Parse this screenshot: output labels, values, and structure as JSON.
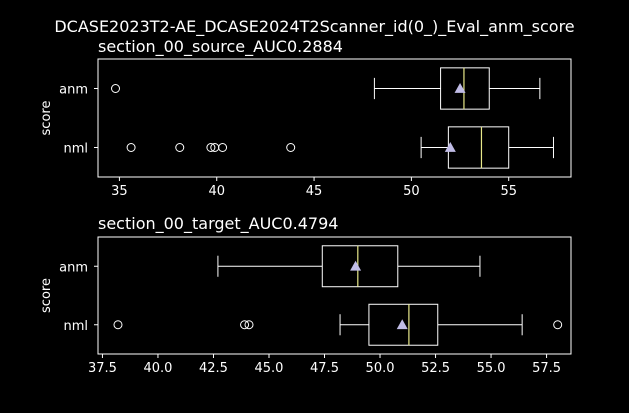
{
  "chart_data": [
    {
      "type": "box",
      "suptitle": "DCASE2023T2-AE_DCASE2024T2Scanner_id(0_)_Eval_anm_score",
      "title": "section_00_source_AUC0.2884",
      "ylabel": "score",
      "xlim": [
        33.9,
        58.2
      ],
      "xticks": [
        35,
        40,
        45,
        50,
        55
      ],
      "xtick_labels": [
        "35",
        "40",
        "45",
        "50",
        "55"
      ],
      "categories": [
        "anm",
        "nml"
      ],
      "boxes": [
        {
          "label": "anm",
          "whisker_low": 48.1,
          "q1": 51.5,
          "median": 52.7,
          "q3": 54.0,
          "whisker_high": 56.6,
          "mean": 52.5,
          "outliers": [
            34.8
          ]
        },
        {
          "label": "nml",
          "whisker_low": 50.5,
          "q1": 51.9,
          "median": 53.6,
          "q3": 55.0,
          "whisker_high": 57.3,
          "mean": 52.0,
          "outliers": [
            35.6,
            38.1,
            39.7,
            39.9,
            40.3,
            43.8
          ]
        }
      ],
      "grid": false
    },
    {
      "type": "box",
      "title": "section_00_target_AUC0.4794",
      "ylabel": "score",
      "xlim": [
        37.3,
        58.6
      ],
      "xticks": [
        37.5,
        40.0,
        42.5,
        45.0,
        47.5,
        50.0,
        52.5,
        55.0,
        57.5
      ],
      "xtick_labels": [
        "37.5",
        "40.0",
        "42.5",
        "45.0",
        "47.5",
        "50.0",
        "52.5",
        "55.0",
        "57.5"
      ],
      "categories": [
        "anm",
        "nml"
      ],
      "boxes": [
        {
          "label": "anm",
          "whisker_low": 42.7,
          "q1": 47.4,
          "median": 49.0,
          "q3": 50.8,
          "whisker_high": 54.5,
          "mean": 48.9,
          "outliers": []
        },
        {
          "label": "nml",
          "whisker_low": 48.2,
          "q1": 49.5,
          "median": 51.3,
          "q3": 52.6,
          "whisker_high": 56.4,
          "mean": 51.0,
          "outliers": [
            38.2,
            43.9,
            44.1,
            58.0
          ]
        }
      ],
      "grid": false
    }
  ],
  "colors": {
    "background": "#000000",
    "box": "#ffffff",
    "median": "#e8e88a",
    "mean": "#c0bce6",
    "outlier": "#ffffff"
  }
}
